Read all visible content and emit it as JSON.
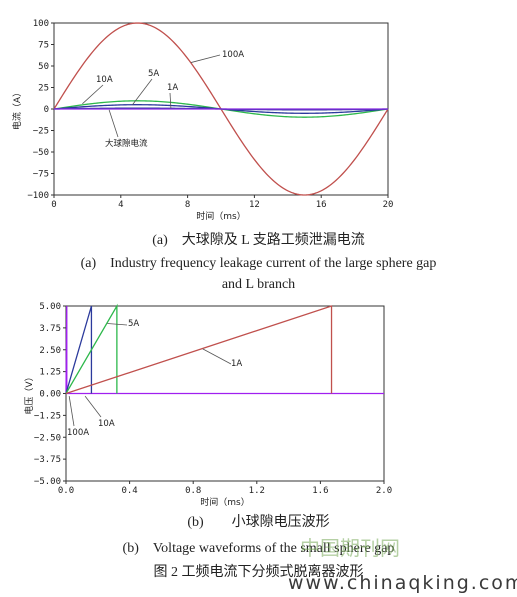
{
  "chart_data": [
    {
      "type": "line",
      "panel": "(a)",
      "xlabel": "时间（ms）",
      "ylabel": "电流（A）",
      "xlim": [
        0,
        20
      ],
      "ylim": [
        -100,
        100
      ],
      "x_ticks": [
        "0",
        "4",
        "8",
        "12",
        "16",
        "20"
      ],
      "y_ticks": [
        "100",
        "75",
        "50",
        "25",
        "0",
        "−25",
        "−50",
        "−75",
        "−100"
      ],
      "grid": false,
      "series": [
        {
          "name": "100A",
          "color": "#c0504d",
          "x": [
            0,
            2,
            4,
            5,
            6,
            8,
            10,
            12,
            14,
            15,
            16,
            18,
            20
          ],
          "y": [
            0,
            59,
            95,
            100,
            95,
            59,
            0,
            -59,
            -95,
            -100,
            -95,
            -59,
            0
          ]
        },
        {
          "name": "10A",
          "color": "#2db84b",
          "x": [
            0,
            1,
            2.5,
            5,
            7.5,
            10,
            12.5,
            15,
            17.5,
            20
          ],
          "y": [
            0,
            4,
            7,
            9.5,
            7,
            0,
            -7,
            -9.5,
            -7,
            0
          ]
        },
        {
          "name": "5A",
          "color": "#2b3a9c",
          "x": [
            0,
            2.5,
            5,
            7.5,
            10,
            12.5,
            15,
            17.5,
            20
          ],
          "y": [
            0,
            3.5,
            5,
            3.5,
            0,
            -3.5,
            -5,
            -3.5,
            0
          ]
        },
        {
          "name": "1A",
          "color": "#2b3a9c",
          "x": [
            0,
            5,
            10,
            15,
            20
          ],
          "y": [
            0,
            1,
            0,
            -1,
            0
          ]
        },
        {
          "name": "大球隙电流",
          "color": "#8a2be2",
          "x": [
            0,
            20
          ],
          "y": [
            0,
            0
          ]
        }
      ],
      "annotations": [
        "100A",
        "10A",
        "5A",
        "1A",
        "大球隙电流"
      ]
    },
    {
      "type": "line",
      "panel": "(b)",
      "xlabel": "时间（ms）",
      "ylabel": "电压（V）",
      "xlim": [
        0,
        2.0
      ],
      "ylim": [
        -5,
        5
      ],
      "x_ticks": [
        "0.0",
        "0.4",
        "0.8",
        "1.2",
        "1.6",
        "2.0"
      ],
      "y_ticks": [
        "5.00",
        "3.75",
        "2.50",
        "1.25",
        "0.00",
        "−1.25",
        "−2.50",
        "−3.75",
        "−5.00"
      ],
      "grid": false,
      "series": [
        {
          "name": "100A",
          "color": "#a020f0",
          "x": [
            0,
            0.005,
            0.005,
            2.0
          ],
          "y": [
            0,
            5,
            0,
            0
          ]
        },
        {
          "name": "10A",
          "color": "#2b3a9c",
          "x": [
            0,
            0.16,
            0.16
          ],
          "y": [
            0,
            5,
            0
          ]
        },
        {
          "name": "5A",
          "color": "#2db84b",
          "x": [
            0,
            0.32,
            0.32
          ],
          "y": [
            0,
            5,
            0
          ]
        },
        {
          "name": "1A",
          "color": "#c0504d",
          "x": [
            0,
            1.67,
            1.67
          ],
          "y": [
            0,
            5,
            0
          ]
        }
      ],
      "annotations": [
        "5A",
        "1A",
        "10A",
        "100A"
      ]
    }
  ],
  "captions": {
    "a_cn": "(a)　大球隙及 L 支路工频泄漏电流",
    "a_en_1": "(a)　Industry frequency leakage current of the large sphere gap",
    "a_en_2": "and L branch",
    "b_cn": "(b)　　小球隙电压波形",
    "b_en": "(b)　Voltage waveforms of the small sphere gap",
    "fig": "图 2  工频电流下分频式脱离器波形"
  },
  "watermark": {
    "cn": "中国期刊网",
    "url": "www.chinaqking.com"
  }
}
